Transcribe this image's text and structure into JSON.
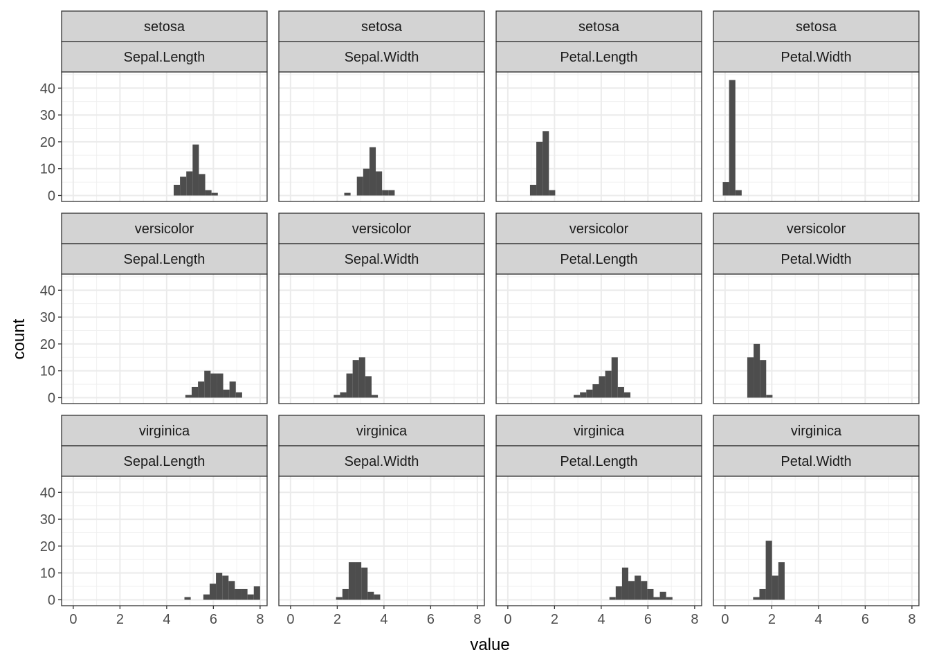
{
  "chart_data": {
    "type": "bar",
    "subtype": "faceted-histogram",
    "xlabel": "value",
    "ylabel": "count",
    "xlim": [
      -0.5,
      8.3
    ],
    "ylim": [
      -2.2,
      46
    ],
    "x_ticks": [
      0,
      2,
      4,
      6,
      8
    ],
    "y_ticks": [
      0,
      10,
      20,
      30,
      40
    ],
    "grid": true,
    "theme": "bw",
    "bar_color": "#4D4D4D",
    "strip_fill": "#D3D3D3",
    "bin_width": 0.27,
    "rows": [
      "setosa",
      "versicolor",
      "virginica"
    ],
    "columns": [
      "Sepal.Length",
      "Sepal.Width",
      "Petal.Length",
      "Petal.Width"
    ],
    "panels": [
      {
        "species": "setosa",
        "variable": "Sepal.Length",
        "bins": [
          [
            4.3,
            4
          ],
          [
            4.57,
            7
          ],
          [
            4.84,
            9
          ],
          [
            5.11,
            19
          ],
          [
            5.38,
            8
          ],
          [
            5.65,
            2
          ],
          [
            5.92,
            1
          ]
        ]
      },
      {
        "species": "setosa",
        "variable": "Sepal.Width",
        "bins": [
          [
            2.3,
            1
          ],
          [
            2.84,
            7
          ],
          [
            3.11,
            10
          ],
          [
            3.38,
            18
          ],
          [
            3.65,
            9
          ],
          [
            3.92,
            2
          ],
          [
            4.19,
            2
          ]
        ]
      },
      {
        "species": "setosa",
        "variable": "Petal.Length",
        "bins": [
          [
            0.95,
            4
          ],
          [
            1.22,
            20
          ],
          [
            1.49,
            24
          ],
          [
            1.76,
            2
          ]
        ]
      },
      {
        "species": "setosa",
        "variable": "Petal.Width",
        "bins": [
          [
            -0.1,
            5
          ],
          [
            0.17,
            43
          ],
          [
            0.44,
            2
          ]
        ]
      },
      {
        "species": "versicolor",
        "variable": "Sepal.Length",
        "bins": [
          [
            4.8,
            1
          ],
          [
            5.07,
            4
          ],
          [
            5.34,
            6
          ],
          [
            5.61,
            10
          ],
          [
            5.88,
            9
          ],
          [
            6.15,
            9
          ],
          [
            6.42,
            3
          ],
          [
            6.69,
            6
          ],
          [
            6.96,
            2
          ]
        ]
      },
      {
        "species": "versicolor",
        "variable": "Sepal.Width",
        "bins": [
          [
            1.85,
            1
          ],
          [
            2.12,
            2
          ],
          [
            2.39,
            9
          ],
          [
            2.66,
            14
          ],
          [
            2.93,
            15
          ],
          [
            3.2,
            8
          ],
          [
            3.47,
            1
          ]
        ]
      },
      {
        "species": "versicolor",
        "variable": "Petal.Length",
        "bins": [
          [
            2.82,
            1
          ],
          [
            3.09,
            2
          ],
          [
            3.36,
            3
          ],
          [
            3.63,
            5
          ],
          [
            3.9,
            8
          ],
          [
            4.17,
            10
          ],
          [
            4.44,
            15
          ],
          [
            4.71,
            4
          ],
          [
            4.98,
            2
          ]
        ]
      },
      {
        "species": "versicolor",
        "variable": "Petal.Width",
        "bins": [
          [
            0.95,
            15
          ],
          [
            1.22,
            20
          ],
          [
            1.49,
            14
          ],
          [
            1.76,
            1
          ]
        ]
      },
      {
        "species": "virginica",
        "variable": "Sepal.Length",
        "bins": [
          [
            4.76,
            1
          ],
          [
            5.57,
            2
          ],
          [
            5.84,
            6
          ],
          [
            6.11,
            10
          ],
          [
            6.38,
            9
          ],
          [
            6.65,
            7
          ],
          [
            6.92,
            4
          ],
          [
            7.19,
            4
          ],
          [
            7.46,
            2
          ],
          [
            7.73,
            5
          ]
        ]
      },
      {
        "species": "virginica",
        "variable": "Sepal.Width",
        "bins": [
          [
            1.95,
            1
          ],
          [
            2.22,
            4
          ],
          [
            2.49,
            14
          ],
          [
            2.76,
            14
          ],
          [
            3.03,
            12
          ],
          [
            3.3,
            3
          ],
          [
            3.57,
            2
          ]
        ]
      },
      {
        "species": "virginica",
        "variable": "Petal.Length",
        "bins": [
          [
            4.35,
            1
          ],
          [
            4.62,
            5
          ],
          [
            4.89,
            12
          ],
          [
            5.16,
            7
          ],
          [
            5.43,
            9
          ],
          [
            5.7,
            7
          ],
          [
            5.97,
            4
          ],
          [
            6.24,
            1
          ],
          [
            6.51,
            3
          ],
          [
            6.78,
            1
          ]
        ]
      },
      {
        "species": "virginica",
        "variable": "Petal.Width",
        "bins": [
          [
            1.2,
            1
          ],
          [
            1.47,
            4
          ],
          [
            1.74,
            22
          ],
          [
            2.01,
            9
          ],
          [
            2.28,
            14
          ]
        ]
      }
    ]
  }
}
